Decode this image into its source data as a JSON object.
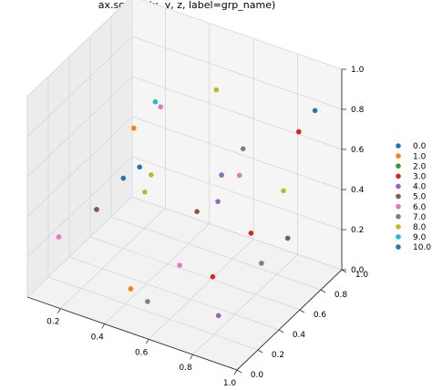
{
  "chart_data": {
    "type": "scatter",
    "projection": "3d",
    "title": "ax.scatter(x, y, z, label=grp_name)",
    "xlabel": "",
    "ylabel": "",
    "zlabel": "",
    "xlim": [
      0.05,
      1.0
    ],
    "ylim": [
      0.0,
      1.0
    ],
    "zlim": [
      0.0,
      1.0
    ],
    "xticks": [
      "0.2",
      "0.4",
      "0.6",
      "0.8",
      "1.0"
    ],
    "yticks": [
      "0.0",
      "0.2",
      "0.4",
      "0.6",
      "0.8",
      "1.0"
    ],
    "zticks": [
      "0.0",
      "0.2",
      "0.4",
      "0.6",
      "0.8",
      "1.0"
    ],
    "grid": true,
    "legend_position": "right",
    "series": [
      {
        "name": "0.0",
        "color": "#1f77b4",
        "points": [
          [
            0.2,
            0.6,
            0.35
          ],
          [
            0.95,
            0.85,
            0.85
          ]
        ]
      },
      {
        "name": "1.0",
        "color": "#ff7f0e",
        "points": [
          [
            0.4,
            0.25,
            0.05
          ],
          [
            0.2,
            0.7,
            0.55
          ]
        ]
      },
      {
        "name": "2.0",
        "color": "#2ca02c",
        "points": [
          [
            0.15,
            0.45,
            0.25
          ]
        ]
      },
      {
        "name": "3.0",
        "color": "#d62728",
        "points": [
          [
            0.9,
            0.8,
            0.75
          ],
          [
            0.85,
            0.45,
            0.4
          ],
          [
            0.7,
            0.4,
            0.15
          ]
        ]
      },
      {
        "name": "4.0",
        "color": "#9467bd",
        "points": [
          [
            0.7,
            0.45,
            0.5
          ],
          [
            0.75,
            0.35,
            0.0
          ],
          [
            0.55,
            0.8,
            0.4
          ]
        ]
      },
      {
        "name": "5.0",
        "color": "#8c564b",
        "points": [
          [
            0.15,
            0.45,
            0.25
          ],
          [
            0.7,
            0.25,
            0.55
          ],
          [
            0.85,
            0.8,
            0.2
          ]
        ]
      },
      {
        "name": "6.0",
        "color": "#e377c2",
        "points": [
          [
            0.05,
            0.3,
            0.15
          ],
          [
            0.55,
            0.4,
            0.15
          ],
          [
            0.25,
            0.85,
            0.6
          ],
          [
            0.75,
            0.55,
            0.6
          ]
        ]
      },
      {
        "name": "7.0",
        "color": "#7f7f7f",
        "points": [
          [
            0.5,
            0.2,
            0.05
          ],
          [
            0.85,
            0.55,
            0.2
          ],
          [
            0.6,
            0.9,
            0.5
          ]
        ]
      },
      {
        "name": "8.0",
        "color": "#bcbd22",
        "points": [
          [
            0.35,
            0.55,
            0.45
          ],
          [
            0.95,
            0.55,
            0.6
          ],
          [
            0.25,
            0.7,
            0.25
          ],
          [
            0.55,
            0.75,
            0.85
          ]
        ]
      },
      {
        "name": "9.0",
        "color": "#17becf",
        "points": [
          [
            0.25,
            0.8,
            0.65
          ]
        ]
      },
      {
        "name": "10.0",
        "color": "#1f77b4",
        "points": [
          [
            0.25,
            0.65,
            0.4
          ]
        ]
      }
    ]
  }
}
